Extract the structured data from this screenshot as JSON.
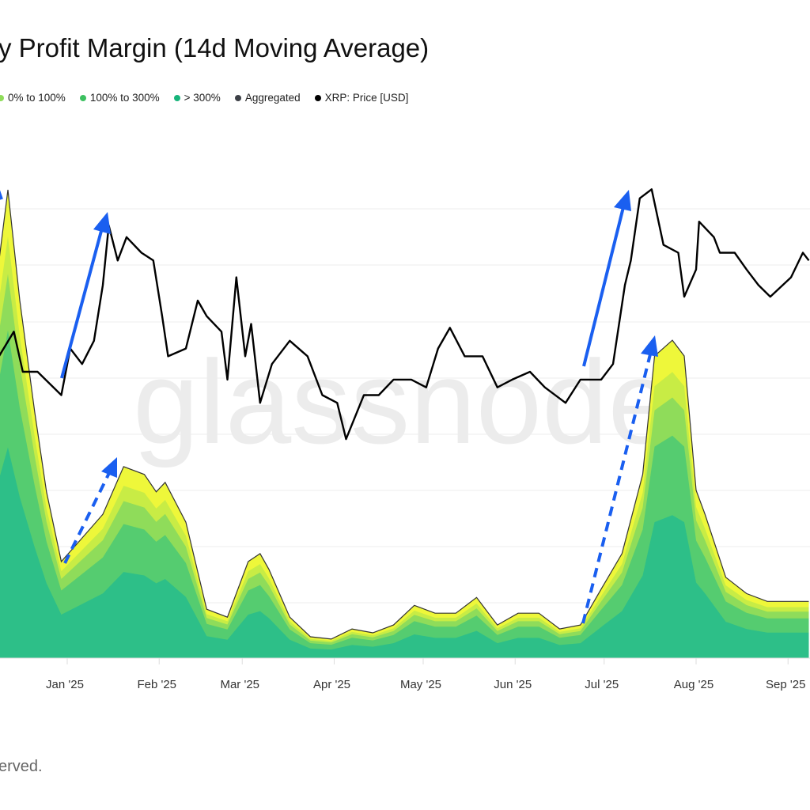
{
  "title": "y Profit Margin (14d Moving Average)",
  "legend": [
    {
      "label": "0% to 100%",
      "color": "#8fdc5a"
    },
    {
      "label": "100% to 300%",
      "color": "#3cc060"
    },
    {
      "label": "> 300%",
      "color": "#17b47a"
    },
    {
      "label": "Aggregated",
      "color": "#3d4047"
    },
    {
      "label": "XRP: Price [USD]",
      "color": "#000000"
    }
  ],
  "watermark": "glassnode",
  "footer": "erved.",
  "chart_data": {
    "type": "area",
    "x_ticks": [
      {
        "date": "2025-01-01",
        "label": "Jan '25"
      },
      {
        "date": "2025-02-01",
        "label": "Feb '25"
      },
      {
        "date": "2025-03-01",
        "label": "Mar '25"
      },
      {
        "date": "2025-04-01",
        "label": "Apr '25"
      },
      {
        "date": "2025-05-01",
        "label": "May '25"
      },
      {
        "date": "2025-06-01",
        "label": "Jun '25"
      },
      {
        "date": "2025-07-01",
        "label": "Jul '25"
      },
      {
        "date": "2025-08-01",
        "label": "Aug '25"
      },
      {
        "date": "2025-09-01",
        "label": "Sep '25"
      }
    ],
    "xlim": [
      "2024-12-09",
      "2025-09-08"
    ],
    "grid": true,
    "layer_colors": [
      "#2dbf88",
      "#55cc70",
      "#8fdc5a",
      "#c8ec45",
      "#eef73a"
    ],
    "layer_shares": [
      0.45,
      0.25,
      0.12,
      0.08,
      0.1
    ],
    "aggregated": {
      "dates": [
        "2024-12-09",
        "2024-12-12",
        "2024-12-16",
        "2024-12-21",
        "2024-12-25",
        "2024-12-30",
        "2025-01-06",
        "2025-01-13",
        "2025-01-20",
        "2025-01-27",
        "2025-01-31",
        "2025-02-03",
        "2025-02-10",
        "2025-02-17",
        "2025-02-24",
        "2025-03-03",
        "2025-03-07",
        "2025-03-10",
        "2025-03-17",
        "2025-03-24",
        "2025-03-31",
        "2025-04-07",
        "2025-04-14",
        "2025-04-21",
        "2025-04-28",
        "2025-05-05",
        "2025-05-12",
        "2025-05-19",
        "2025-05-26",
        "2025-06-02",
        "2025-06-09",
        "2025-06-16",
        "2025-06-23",
        "2025-06-30",
        "2025-07-07",
        "2025-07-14",
        "2025-07-18",
        "2025-07-24",
        "2025-07-28",
        "2025-08-01",
        "2025-08-04",
        "2025-08-11",
        "2025-08-18",
        "2025-08-25",
        "2025-09-01",
        "2025-09-08"
      ],
      "values": [
        7.07,
        8.34,
        6.37,
        4.39,
        2.96,
        1.72,
        2.14,
        2.56,
        3.41,
        3.27,
        2.96,
        3.13,
        2.42,
        0.87,
        0.73,
        1.72,
        1.86,
        1.58,
        0.73,
        0.38,
        0.34,
        0.52,
        0.45,
        0.59,
        0.94,
        0.8,
        0.8,
        1.08,
        0.59,
        0.8,
        0.8,
        0.52,
        0.59,
        1.23,
        1.86,
        3.27,
        5.38,
        5.66,
        5.38,
        2.99,
        2.56,
        1.44,
        1.15,
        1.01,
        1.01,
        1.01
      ]
    },
    "price_usd": {
      "dates": [
        "2024-12-09",
        "2024-12-14",
        "2024-12-17",
        "2024-12-22",
        "2024-12-30",
        "2025-01-02",
        "2025-01-06",
        "2025-01-10",
        "2025-01-13",
        "2025-01-15",
        "2025-01-18",
        "2025-01-21",
        "2025-01-26",
        "2025-01-30",
        "2025-02-02",
        "2025-02-04",
        "2025-02-10",
        "2025-02-14",
        "2025-02-17",
        "2025-02-22",
        "2025-02-24",
        "2025-02-27",
        "2025-03-02",
        "2025-03-04",
        "2025-03-07",
        "2025-03-11",
        "2025-03-17",
        "2025-03-23",
        "2025-03-28",
        "2025-04-02",
        "2025-04-05",
        "2025-04-11",
        "2025-04-16",
        "2025-04-21",
        "2025-04-27",
        "2025-05-02",
        "2025-05-06",
        "2025-05-10",
        "2025-05-15",
        "2025-05-21",
        "2025-05-26",
        "2025-05-31",
        "2025-06-06",
        "2025-06-11",
        "2025-06-18",
        "2025-06-23",
        "2025-06-30",
        "2025-07-04",
        "2025-07-08",
        "2025-07-10",
        "2025-07-13",
        "2025-07-17",
        "2025-07-21",
        "2025-07-26",
        "2025-07-28",
        "2025-08-01",
        "2025-08-02",
        "2025-08-07",
        "2025-08-09",
        "2025-08-14",
        "2025-08-18",
        "2025-08-22",
        "2025-08-26",
        "2025-09-02",
        "2025-09-06",
        "2025-09-08"
      ],
      "values": [
        2.34,
        2.53,
        2.22,
        2.22,
        2.04,
        2.4,
        2.28,
        2.46,
        2.89,
        3.35,
        3.08,
        3.26,
        3.14,
        3.08,
        2.65,
        2.34,
        2.4,
        2.77,
        2.65,
        2.53,
        2.16,
        2.95,
        2.34,
        2.59,
        1.98,
        2.28,
        2.46,
        2.34,
        2.04,
        1.98,
        1.7,
        2.04,
        2.04,
        2.16,
        2.16,
        2.1,
        2.4,
        2.56,
        2.34,
        2.34,
        2.1,
        2.16,
        2.22,
        2.1,
        1.98,
        2.16,
        2.16,
        2.28,
        2.89,
        3.08,
        3.56,
        3.63,
        3.2,
        3.14,
        2.8,
        3.01,
        3.38,
        3.26,
        3.14,
        3.14,
        3.01,
        2.89,
        2.8,
        2.95,
        3.14,
        3.08
      ]
    }
  }
}
